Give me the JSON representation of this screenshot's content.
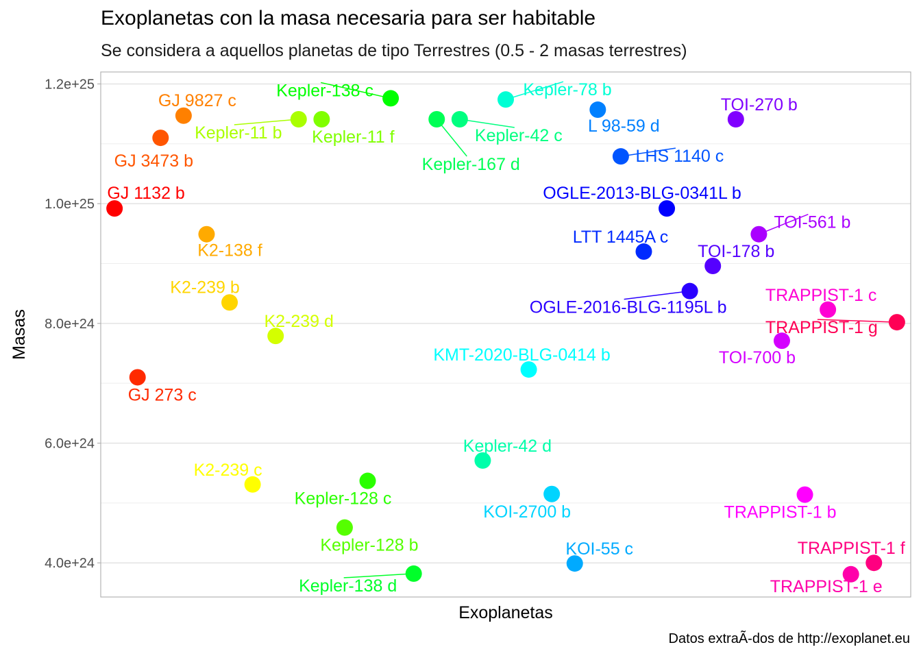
{
  "chart_data": {
    "type": "scatter",
    "title": "Exoplanetas con la masa necesaria para ser habitable",
    "subtitle": "Se considera a aquellos planetas de tipo Terrestres (0.5 - 2 masas terrestres)",
    "caption": "Datos extraÃ-dos de http://exoplanet.eu",
    "xlabel": "Exoplanetas",
    "ylabel": "Masas",
    "y_ticks": [
      {
        "value": 4e+24,
        "label": "4.0e+24"
      },
      {
        "value": 6e+24,
        "label": "6.0e+24"
      },
      {
        "value": 8e+24,
        "label": "8.0e+24"
      },
      {
        "value": 1e+25,
        "label": "1.0e+25"
      },
      {
        "value": 1.2e+25,
        "label": "1.2e+25"
      }
    ],
    "ylim": [
      3.43e+24,
      1.22e+25
    ],
    "grid": true,
    "legend": "none",
    "points": [
      {
        "name": "GJ 1132 b",
        "x": 1,
        "y": 9.92e+24,
        "color": "#FF0000",
        "lx": 0,
        "ly": -22
      },
      {
        "name": "GJ 273 c",
        "x": 2,
        "y": 7.1e+24,
        "color": "#FF2A00",
        "lx": 36,
        "ly": 26
      },
      {
        "name": "GJ 3473 b",
        "x": 3,
        "y": 1.11e+25,
        "color": "#FF5500",
        "lx": -10,
        "ly": 34
      },
      {
        "name": "GJ 9827 c",
        "x": 4,
        "y": 1.147e+25,
        "color": "#FF8000",
        "lx": 20,
        "ly": -22
      },
      {
        "name": "K2-138 f",
        "x": 5,
        "y": 9.49e+24,
        "color": "#FFAA00",
        "lx": 34,
        "ly": 24
      },
      {
        "name": "K2-239 b",
        "x": 6,
        "y": 8.35e+24,
        "color": "#FFD500",
        "lx": -36,
        "ly": -22
      },
      {
        "name": "K2-239 c",
        "x": 7,
        "y": 5.31e+24,
        "color": "#FFFF00",
        "lx": -36,
        "ly": -21
      },
      {
        "name": "K2-239 d",
        "x": 8,
        "y": 7.79e+24,
        "color": "#D4FF00",
        "lx": 34,
        "ly": -21
      },
      {
        "name": "Kepler-11 b",
        "x": 9,
        "y": 1.141e+25,
        "color": "#AAFF00",
        "lx": -88,
        "ly": 20
      },
      {
        "name": "Kepler-11 f",
        "x": 10,
        "y": 1.141e+25,
        "color": "#80FF00",
        "lx": 46,
        "ly": 26
      },
      {
        "name": "Kepler-128 b",
        "x": 11,
        "y": 4.59e+24,
        "color": "#55FF00",
        "lx": 36,
        "ly": 26
      },
      {
        "name": "Kepler-128 c",
        "x": 12,
        "y": 5.37e+24,
        "color": "#2AFF00",
        "lx": -36,
        "ly": 26
      },
      {
        "name": "Kepler-138 c",
        "x": 13,
        "y": 1.176e+25,
        "color": "#00FF00",
        "lx": -96,
        "ly": -11
      },
      {
        "name": "Kepler-138 d",
        "x": 14,
        "y": 3.82e+24,
        "color": "#00FF2A",
        "lx": -96,
        "ly": 18
      },
      {
        "name": "Kepler-167 d",
        "x": 15,
        "y": 1.141e+25,
        "color": "#00FF55",
        "lx": 50,
        "ly": 66
      },
      {
        "name": "Kepler-42 c",
        "x": 16,
        "y": 1.141e+25,
        "color": "#00FF80",
        "lx": 86,
        "ly": 24
      },
      {
        "name": "Kepler-42 d",
        "x": 17,
        "y": 5.71e+24,
        "color": "#00FFAA",
        "lx": 36,
        "ly": -21
      },
      {
        "name": "Kepler-78 b",
        "x": 18,
        "y": 1.174e+25,
        "color": "#00FFD4",
        "lx": 90,
        "ly": -14
      },
      {
        "name": "KMT-2020-BLG-0414 b",
        "x": 19,
        "y": 7.23e+24,
        "color": "#00FFFF",
        "lx": -10,
        "ly": -21
      },
      {
        "name": "KOI-2700 b",
        "x": 20,
        "y": 5.15e+24,
        "color": "#00D4FF",
        "lx": -36,
        "ly": 26
      },
      {
        "name": "KOI-55 c",
        "x": 21,
        "y": 3.99e+24,
        "color": "#00AAFF",
        "lx": 36,
        "ly": -21
      },
      {
        "name": "L 98-59 d",
        "x": 22,
        "y": 1.157e+25,
        "color": "#0080FF",
        "lx": 38,
        "ly": 24
      },
      {
        "name": "LHS 1140 c",
        "x": 23,
        "y": 1.079e+25,
        "color": "#0055FF",
        "lx": 86,
        "ly": 0
      },
      {
        "name": "LTT 1445A c",
        "x": 24,
        "y": 9.2e+24,
        "color": "#002AFF",
        "lx": -34,
        "ly": -21
      },
      {
        "name": "OGLE-2013-BLG-0341L b",
        "x": 25,
        "y": 9.92e+24,
        "color": "#0000FF",
        "lx": -36,
        "ly": -22
      },
      {
        "name": "OGLE-2016-BLG-1195L b",
        "x": 26,
        "y": 8.54e+24,
        "color": "#2A00FF",
        "lx": -90,
        "ly": 24
      },
      {
        "name": "TOI-178 b",
        "x": 27,
        "y": 8.96e+24,
        "color": "#5500FF",
        "lx": 34,
        "ly": -21
      },
      {
        "name": "TOI-270 b",
        "x": 28,
        "y": 1.141e+25,
        "color": "#8000FF",
        "lx": 34,
        "ly": -21
      },
      {
        "name": "TOI-561 b",
        "x": 29,
        "y": 9.49e+24,
        "color": "#AA00FF",
        "lx": 78,
        "ly": -17
      },
      {
        "name": "TOI-700 b",
        "x": 30,
        "y": 7.71e+24,
        "color": "#D400FF",
        "lx": -36,
        "ly": 25
      },
      {
        "name": "TRAPPIST-1 b",
        "x": 31,
        "y": 5.14e+24,
        "color": "#FF00FF",
        "lx": -36,
        "ly": 26
      },
      {
        "name": "TRAPPIST-1 c",
        "x": 32,
        "y": 8.23e+24,
        "color": "#FF00D4",
        "lx": -10,
        "ly": -21
      },
      {
        "name": "TRAPPIST-1 e",
        "x": 33,
        "y": 3.81e+24,
        "color": "#FF00AA",
        "lx": -36,
        "ly": 18
      },
      {
        "name": "TRAPPIST-1 f",
        "x": 34,
        "y": 4e+24,
        "color": "#FF0080",
        "lx": -30,
        "ly": -21
      },
      {
        "name": "TRAPPIST-1 g",
        "x": 35,
        "y": 8.02e+24,
        "color": "#FF0055",
        "lx": -110,
        "ly": 8
      }
    ]
  }
}
